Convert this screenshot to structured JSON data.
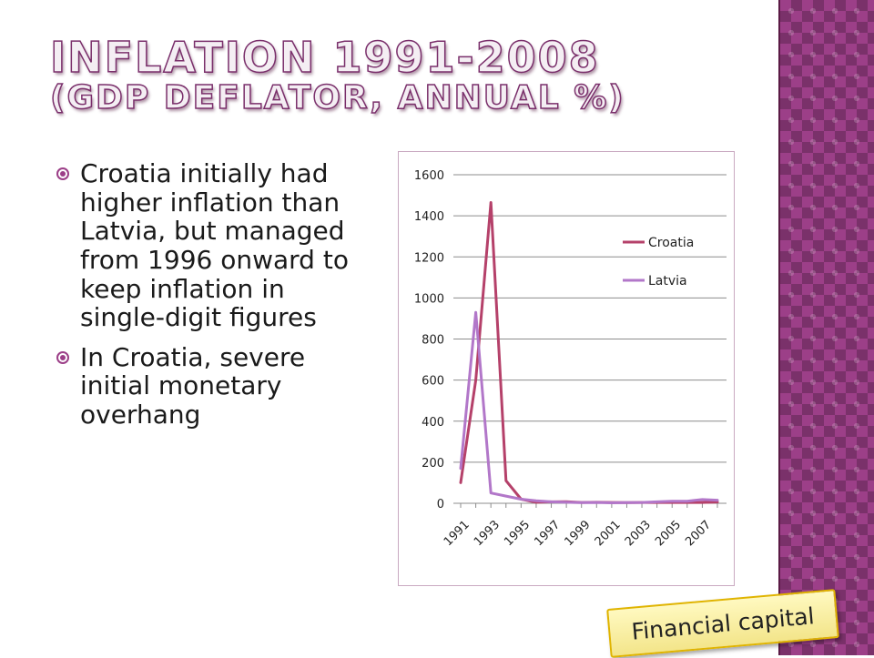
{
  "slide": {
    "title_line1": "INFLATION 1991-2008",
    "title_line2": "(GDP DEFLATOR, ANNUAL %)",
    "bullets": [
      "Croatia initially had higher inflation than Latvia, but managed from 1996 onward to keep inflation in single-digit figures",
      "In Croatia, severe initial monetary overhang"
    ],
    "badge": "Financial capital"
  },
  "colors": {
    "accent": "#9c3f88",
    "croatia": "#b5416a",
    "latvia": "#b277c9",
    "grid": "#8c8c8c"
  },
  "chart_data": {
    "type": "line",
    "title": "",
    "xlabel": "",
    "ylabel": "",
    "x": [
      "1991",
      "1992",
      "1993",
      "1994",
      "1995",
      "1996",
      "1997",
      "1998",
      "1999",
      "2000",
      "2001",
      "2002",
      "2003",
      "2004",
      "2005",
      "2006",
      "2007",
      "2008"
    ],
    "x_tick_labels": [
      "1991",
      "1993",
      "1995",
      "1997",
      "1999",
      "2001",
      "2003",
      "2005",
      "2007"
    ],
    "ylim": [
      0,
      1600
    ],
    "y_ticks": [
      0,
      200,
      400,
      600,
      800,
      1000,
      1200,
      1400,
      1600
    ],
    "grid": true,
    "legend": "right",
    "series": [
      {
        "name": "Croatia",
        "color": "#b5416a",
        "values": [
          100,
          600,
          1465,
          110,
          20,
          5,
          7,
          8,
          4,
          5,
          4,
          3,
          4,
          4,
          4,
          4,
          4,
          6
        ]
      },
      {
        "name": "Latvia",
        "color": "#b277c9",
        "values": [
          170,
          930,
          50,
          35,
          20,
          12,
          7,
          5,
          3,
          4,
          2,
          3,
          4,
          7,
          10,
          10,
          18,
          15
        ]
      }
    ]
  }
}
